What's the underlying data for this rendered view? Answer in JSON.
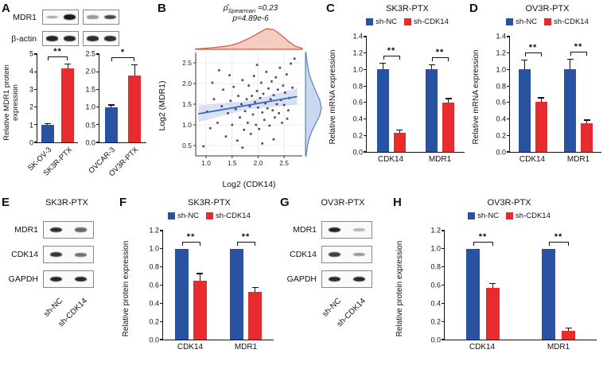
{
  "colors": {
    "blue": "#2a52a2",
    "red": "#e72b2e",
    "axis": "#111111"
  },
  "figure": {
    "panels": {
      "A": {
        "label": "A"
      },
      "B": {
        "label": "B"
      },
      "C": {
        "label": "C"
      },
      "D": {
        "label": "D"
      },
      "E": {
        "label": "E",
        "title": "SK3R-PTX"
      },
      "F": {
        "label": "F"
      },
      "G": {
        "label": "G",
        "title": "OV3R-PTX"
      },
      "H": {
        "label": "H"
      }
    }
  },
  "blots": {
    "A": {
      "rows": [
        {
          "label": "MDR1",
          "boxes": [
            [
              0.22,
              0.97
            ],
            [
              0.28,
              0.72
            ]
          ]
        },
        {
          "label": "β-actin",
          "boxes": [
            [
              0.92,
              0.9
            ],
            [
              0.88,
              0.86
            ]
          ]
        }
      ]
    },
    "E": {
      "rows": [
        {
          "label": "MDR1",
          "boxes": [
            [
              0.88,
              0.55
            ]
          ]
        },
        {
          "label": "CDK14",
          "boxes": [
            [
              0.82,
              0.5
            ]
          ]
        },
        {
          "label": "GAPDH",
          "boxes": [
            [
              0.92,
              0.9
            ]
          ]
        }
      ],
      "lane_labels": [
        "sh-NC",
        "sh-CDK14"
      ]
    },
    "G": {
      "rows": [
        {
          "label": "MDR1",
          "boxes": [
            [
              0.92,
              0.12
            ]
          ]
        },
        {
          "label": "CDK14",
          "boxes": [
            [
              0.78,
              0.3
            ]
          ]
        },
        {
          "label": "GAPDH",
          "boxes": [
            [
              0.9,
              0.9
            ]
          ]
        }
      ],
      "lane_labels": [
        "sh-NC",
        "sh-CDK14"
      ]
    }
  },
  "chart_data": [
    {
      "panel": "A-left",
      "type": "bar",
      "ylabel": "Relative MDR1 protein expression",
      "ylim": [
        0,
        5
      ],
      "yticks": [
        "0",
        "1",
        "2",
        "3",
        "4",
        "5"
      ],
      "bars": [
        {
          "label": "SK-OV-3",
          "color": "blue",
          "value": 1.0,
          "error": 0.07
        },
        {
          "label": "SK3R-PTX",
          "color": "red",
          "value": 4.2,
          "error": 0.25
        }
      ],
      "sig_across": "**",
      "rotate_xlabels": true
    },
    {
      "panel": "A-right",
      "type": "bar",
      "ylim": [
        0,
        2.5
      ],
      "yticks": [
        "0.0",
        "0.5",
        "1.0",
        "1.5",
        "2.0",
        "2.5"
      ],
      "bars": [
        {
          "label": "OVCAR-3",
          "color": "blue",
          "value": 1.0,
          "error": 0.07
        },
        {
          "label": "OV3R-PTX",
          "color": "red",
          "value": 1.9,
          "error": 0.3
        }
      ],
      "sig_across": "*",
      "rotate_xlabels": true
    },
    {
      "panel": "B",
      "type": "scatter",
      "annotation": {
        "rho": "ρ̂",
        "sub": "Spearman",
        "val": " =0.23",
        "pline": "p=4.89e-6"
      },
      "xlabel": "Log2 (CDK14)",
      "ylabel": "Log2 (MDR1)",
      "xlim": [
        0.8,
        2.85
      ],
      "ylim": [
        0.25,
        2.75
      ],
      "xticks": [
        "1.0",
        "1.5",
        "2.0",
        "2.5"
      ],
      "yticks": [
        "0.5",
        "1.0",
        "1.5",
        "2.0",
        "2.5"
      ],
      "points": [
        [
          1.02,
          1.32
        ],
        [
          1.08,
          0.92
        ],
        [
          1.15,
          1.62
        ],
        [
          1.22,
          1.05
        ],
        [
          1.3,
          1.45
        ],
        [
          1.33,
          1.85
        ],
        [
          1.38,
          0.72
        ],
        [
          1.42,
          1.28
        ],
        [
          1.47,
          1.58
        ],
        [
          1.5,
          1.0
        ],
        [
          1.53,
          1.92
        ],
        [
          1.57,
          1.38
        ],
        [
          1.6,
          0.62
        ],
        [
          1.62,
          1.7
        ],
        [
          1.65,
          1.18
        ],
        [
          1.68,
          1.5
        ],
        [
          1.7,
          2.08
        ],
        [
          1.73,
          0.88
        ],
        [
          1.75,
          1.33
        ],
        [
          1.78,
          1.62
        ],
        [
          1.8,
          1.05
        ],
        [
          1.82,
          1.95
        ],
        [
          1.84,
          1.45
        ],
        [
          1.86,
          0.78
        ],
        [
          1.88,
          1.7
        ],
        [
          1.9,
          1.25
        ],
        [
          1.92,
          2.18
        ],
        [
          1.94,
          1.55
        ],
        [
          1.96,
          1.0
        ],
        [
          1.98,
          1.82
        ],
        [
          2.0,
          1.42
        ],
        [
          2.02,
          0.9
        ],
        [
          2.04,
          1.65
        ],
        [
          2.06,
          2.02
        ],
        [
          2.08,
          1.3
        ],
        [
          2.1,
          1.75
        ],
        [
          2.12,
          1.12
        ],
        [
          2.14,
          1.52
        ],
        [
          2.16,
          2.28
        ],
        [
          2.18,
          1.4
        ],
        [
          2.2,
          1.88
        ],
        [
          2.22,
          0.98
        ],
        [
          2.24,
          1.62
        ],
        [
          2.26,
          2.05
        ],
        [
          2.28,
          1.35
        ],
        [
          2.3,
          1.72
        ],
        [
          2.32,
          1.18
        ],
        [
          2.34,
          2.15
        ],
        [
          2.36,
          1.5
        ],
        [
          2.38,
          1.85
        ],
        [
          2.4,
          1.28
        ],
        [
          2.42,
          2.38
        ],
        [
          2.44,
          1.6
        ],
        [
          2.46,
          1.05
        ],
        [
          2.48,
          1.95
        ],
        [
          2.5,
          1.48
        ],
        [
          2.52,
          1.78
        ],
        [
          2.55,
          2.22
        ],
        [
          2.58,
          1.35
        ],
        [
          2.6,
          1.65
        ],
        [
          2.63,
          2.48
        ],
        [
          2.66,
          1.9
        ],
        [
          2.7,
          2.6
        ],
        [
          0.95,
          0.48
        ],
        [
          1.12,
          2.02
        ],
        [
          1.25,
          2.32
        ],
        [
          2.56,
          1.15
        ],
        [
          1.45,
          2.2
        ],
        [
          1.98,
          2.45
        ],
        [
          2.3,
          0.65
        ],
        [
          1.7,
          0.45
        ],
        [
          2.08,
          0.55
        ]
      ],
      "regression": {
        "x": [
          0.85,
          1.8,
          2.75
        ],
        "slope": 0.22,
        "intercept": 1.08,
        "band_width": [
          0.2,
          0.1,
          0.2
        ]
      },
      "density_top": [
        0.02,
        0.04,
        0.07,
        0.1,
        0.14,
        0.2,
        0.3,
        0.45,
        0.62,
        0.82,
        1.0,
        0.95,
        0.7,
        0.4,
        0.15,
        0.05
      ],
      "density_right": [
        0.04,
        0.1,
        0.2,
        0.38,
        0.62,
        0.88,
        1.0,
        0.9,
        0.68,
        0.46,
        0.28,
        0.16,
        0.08,
        0.03
      ],
      "scolors": {
        "point": "#2b2b2b",
        "line": "#3a6abf",
        "band": "#b9cbe8",
        "top_fill": "#ec9a80",
        "top_stroke": "#cf5a3c",
        "right_fill": "#93b2da",
        "right_stroke": "#5d83b8",
        "grid": "#ebebeb"
      }
    },
    {
      "panel": "C",
      "type": "bar",
      "title": "SK3R-PTX",
      "legend": [
        {
          "label": "sh-NC",
          "color": "blue"
        },
        {
          "label": "sh-CDK14",
          "color": "red"
        }
      ],
      "ylabel": "Relative mRNA expression",
      "ylim": [
        0,
        1.4
      ],
      "yticks": [
        "0.0",
        "0.2",
        "0.4",
        "0.6",
        "0.8",
        "1.0",
        "1.2",
        "1.4"
      ],
      "categories": [
        "CDK14",
        "MDR1"
      ],
      "series": [
        {
          "name": "sh-NC",
          "color": "blue",
          "values": [
            1.0,
            1.0
          ],
          "errors": [
            0.08,
            0.06
          ]
        },
        {
          "name": "sh-CDK14",
          "color": "red",
          "values": [
            0.23,
            0.6
          ],
          "errors": [
            0.04,
            0.05
          ]
        }
      ],
      "sig": [
        "**",
        "**"
      ]
    },
    {
      "panel": "D",
      "type": "bar",
      "title": "OV3R-PTX",
      "legend": [
        {
          "label": "sh-NC",
          "color": "blue"
        },
        {
          "label": "sh-CDK14",
          "color": "red"
        }
      ],
      "ylabel": "Relative mRNA expression",
      "ylim": [
        0,
        1.4
      ],
      "yticks": [
        "0.0",
        "0.2",
        "0.4",
        "0.6",
        "0.8",
        "1.0",
        "1.2",
        "1.4"
      ],
      "categories": [
        "CDK14",
        "MDR1"
      ],
      "series": [
        {
          "name": "sh-NC",
          "color": "blue",
          "values": [
            1.0,
            1.0
          ],
          "errors": [
            0.12,
            0.13
          ]
        },
        {
          "name": "sh-CDK14",
          "color": "red",
          "values": [
            0.61,
            0.35
          ],
          "errors": [
            0.05,
            0.04
          ]
        }
      ],
      "sig": [
        "**",
        "**"
      ]
    },
    {
      "panel": "F",
      "type": "bar",
      "title": "SK3R-PTX",
      "legend": [
        {
          "label": "sh-NC",
          "color": "blue"
        },
        {
          "label": "sh-CDK14",
          "color": "red"
        }
      ],
      "ylabel": "Relative protein expression",
      "ylim": [
        0,
        1.2
      ],
      "yticks": [
        "0.0",
        "0.2",
        "0.4",
        "0.6",
        "0.8",
        "1.0",
        "1.2"
      ],
      "categories": [
        "CDK14",
        "MDR1"
      ],
      "series": [
        {
          "name": "sh-NC",
          "color": "blue",
          "values": [
            1.0,
            1.0
          ],
          "errors": [
            0,
            0
          ]
        },
        {
          "name": "sh-CDK14",
          "color": "red",
          "values": [
            0.65,
            0.53
          ],
          "errors": [
            0.08,
            0.05
          ]
        }
      ],
      "sig": [
        "**",
        "**"
      ]
    },
    {
      "panel": "H",
      "type": "bar",
      "title": "OV3R-PTX",
      "legend": [
        {
          "label": "sh-NC",
          "color": "blue"
        },
        {
          "label": "sh-CDK14",
          "color": "red"
        }
      ],
      "ylabel": "Relative protein expression",
      "ylim": [
        0,
        1.2
      ],
      "yticks": [
        "0.0",
        "0.2",
        "0.4",
        "0.6",
        "0.8",
        "1.0",
        "1.2"
      ],
      "categories": [
        "CDK14",
        "MDR1"
      ],
      "series": [
        {
          "name": "sh-NC",
          "color": "blue",
          "values": [
            1.0,
            1.0
          ],
          "errors": [
            0,
            0
          ]
        },
        {
          "name": "sh-CDK14",
          "color": "red",
          "values": [
            0.57,
            0.1
          ],
          "errors": [
            0.05,
            0.03
          ]
        }
      ],
      "sig": [
        "**",
        "**"
      ]
    }
  ]
}
